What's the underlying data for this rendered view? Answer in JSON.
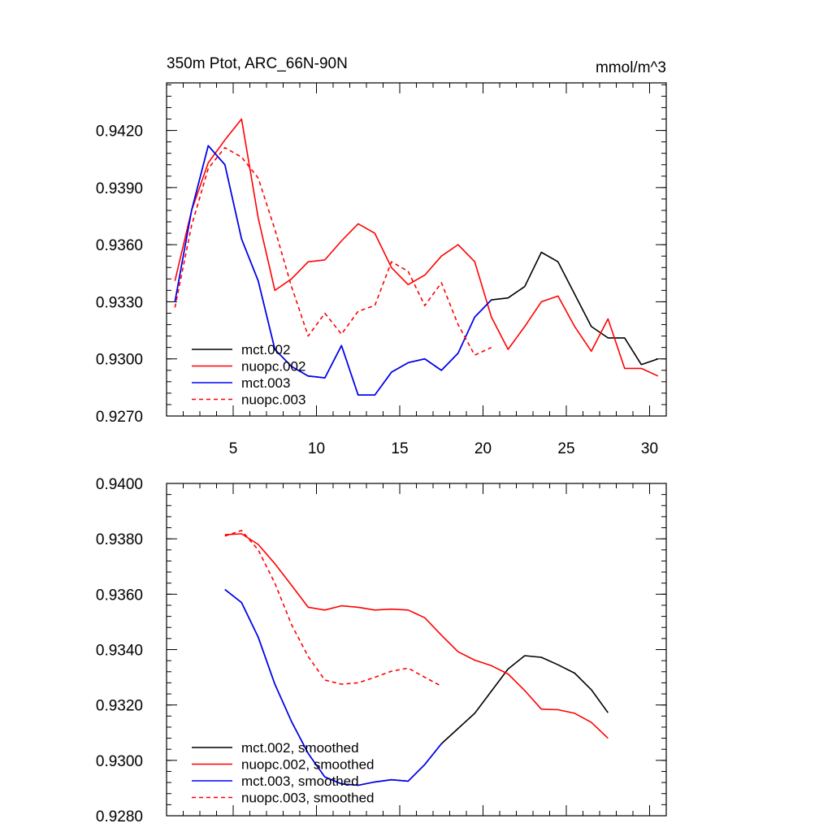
{
  "chart_data": [
    {
      "type": "line",
      "title": "350m Ptot, ARC_66N-90N",
      "units": "mmol/m^3",
      "xlabel": "",
      "ylabel": "",
      "xlim": [
        1,
        31
      ],
      "ylim": [
        0.927,
        0.9445
      ],
      "x_ticks": [
        5,
        10,
        15,
        20,
        25,
        30
      ],
      "x_tick_labels": [
        "5",
        "10",
        "15",
        "20",
        "25",
        "30"
      ],
      "y_ticks": [
        0.927,
        0.93,
        0.933,
        0.936,
        0.939,
        0.942
      ],
      "y_tick_labels": [
        "0.9270",
        "0.9300",
        "0.9330",
        "0.9360",
        "0.9390",
        "0.9420"
      ],
      "legend_position": "bottom-left",
      "series": [
        {
          "name": "mct.002",
          "color": "#000000",
          "dash": "solid",
          "x": [
            1.5,
            2.5,
            3.5,
            4.5,
            5.5,
            6.5,
            7.5,
            8.5,
            9.5,
            10.5,
            11.5,
            12.5,
            13.5,
            14.5,
            15.5,
            16.5,
            17.5,
            18.5,
            19.5,
            20.5,
            21.5,
            22.5,
            23.5,
            24.5,
            25.5,
            26.5,
            27.5,
            28.5,
            29.5,
            30.5
          ],
          "values": [
            0.933,
            0.9378,
            0.9412,
            0.9402,
            0.9363,
            0.9341,
            0.9305,
            0.9296,
            0.9291,
            0.929,
            0.9307,
            0.9281,
            0.9281,
            0.9293,
            0.9298,
            0.93,
            0.9294,
            0.9303,
            0.9322,
            0.9331,
            0.9332,
            0.9338,
            0.9356,
            0.9351,
            0.9334,
            0.9317,
            0.9311,
            0.9311,
            0.9297,
            0.93
          ]
        },
        {
          "name": "nuopc.002",
          "color": "#ff0000",
          "dash": "solid",
          "x": [
            1.5,
            2.5,
            3.5,
            4.5,
            5.5,
            6.5,
            7.5,
            8.5,
            9.5,
            10.5,
            11.5,
            12.5,
            13.5,
            14.5,
            15.5,
            16.5,
            17.5,
            18.5,
            19.5,
            20.5,
            21.5,
            22.5,
            23.5,
            24.5,
            25.5,
            26.5,
            27.5,
            28.5,
            29.5,
            30.5
          ],
          "values": [
            0.9341,
            0.9378,
            0.9403,
            0.9415,
            0.9426,
            0.9374,
            0.9336,
            0.9342,
            0.9351,
            0.9352,
            0.9362,
            0.9371,
            0.9366,
            0.9348,
            0.9339,
            0.9344,
            0.9354,
            0.936,
            0.9351,
            0.9322,
            0.9305,
            0.9317,
            0.933,
            0.9333,
            0.9317,
            0.9304,
            0.9321,
            0.9295,
            0.9295,
            0.9291
          ]
        },
        {
          "name": "mct.003",
          "color": "#0000ff",
          "dash": "solid",
          "x": [
            1.5,
            2.5,
            3.5,
            4.5,
            5.5,
            6.5,
            7.5,
            8.5,
            9.5,
            10.5,
            11.5,
            12.5,
            13.5,
            14.5,
            15.5,
            16.5,
            17.5,
            18.5,
            19.5,
            20.5
          ],
          "values": [
            0.933,
            0.9378,
            0.9412,
            0.9402,
            0.9363,
            0.9341,
            0.9305,
            0.9296,
            0.9291,
            0.929,
            0.9307,
            0.9281,
            0.9281,
            0.9293,
            0.9298,
            0.93,
            0.9294,
            0.9303,
            0.9322,
            0.9331
          ]
        },
        {
          "name": "nuopc.003",
          "color": "#ff0000",
          "dash": "dashed",
          "x": [
            1.5,
            2.5,
            3.5,
            4.5,
            5.5,
            6.5,
            7.5,
            8.5,
            9.5,
            10.5,
            11.5,
            12.5,
            13.5,
            14.5,
            15.5,
            16.5,
            17.5,
            18.5,
            19.5,
            20.5
          ],
          "values": [
            0.9327,
            0.937,
            0.94,
            0.9411,
            0.9406,
            0.9395,
            0.9368,
            0.9338,
            0.9312,
            0.9324,
            0.9313,
            0.9325,
            0.9328,
            0.9351,
            0.9346,
            0.9328,
            0.934,
            0.9318,
            0.9302,
            0.9306
          ]
        }
      ]
    },
    {
      "type": "line",
      "title": "",
      "xlabel": "",
      "ylabel": "",
      "xlim": [
        1,
        31
      ],
      "ylim": [
        0.928,
        0.94
      ],
      "x_ticks": [
        5,
        10,
        15,
        20,
        25,
        30
      ],
      "x_tick_labels": [],
      "y_ticks": [
        0.928,
        0.93,
        0.932,
        0.934,
        0.936,
        0.938,
        0.94
      ],
      "y_tick_labels": [
        "0.9280",
        "0.9300",
        "0.9320",
        "0.9340",
        "0.9360",
        "0.9380",
        "0.9400"
      ],
      "legend_position": "bottom-left",
      "series": [
        {
          "name": "mct.002, smoothed",
          "color": "#000000",
          "dash": "solid",
          "x": [
            4.5,
            5.5,
            6.5,
            7.5,
            8.5,
            9.5,
            10.5,
            11.5,
            12.5,
            13.5,
            14.5,
            15.5,
            16.5,
            17.5,
            18.5,
            19.5,
            20.5,
            21.5,
            22.5,
            23.5,
            24.5,
            25.5,
            26.5,
            27.5
          ],
          "values": [
            0.93617,
            0.9357,
            0.93445,
            0.93275,
            0.9314,
            0.93025,
            0.9294,
            0.92915,
            0.9291,
            0.92922,
            0.9293,
            0.92925,
            0.92985,
            0.9306,
            0.93115,
            0.9317,
            0.9325,
            0.9333,
            0.93378,
            0.93372,
            0.93345,
            0.93315,
            0.93255,
            0.93172
          ]
        },
        {
          "name": "nuopc.002, smoothed",
          "color": "#ff0000",
          "dash": "solid",
          "x": [
            4.5,
            5.5,
            6.5,
            7.5,
            8.5,
            9.5,
            10.5,
            11.5,
            12.5,
            13.5,
            14.5,
            15.5,
            16.5,
            17.5,
            18.5,
            19.5,
            20.5,
            21.5,
            22.5,
            23.5,
            24.5,
            25.5,
            26.5,
            27.5
          ],
          "values": [
            0.93815,
            0.93818,
            0.9378,
            0.9371,
            0.93632,
            0.93553,
            0.93543,
            0.93558,
            0.93553,
            0.93543,
            0.93546,
            0.93543,
            0.93515,
            0.93452,
            0.93392,
            0.93362,
            0.93342,
            0.93312,
            0.93252,
            0.93185,
            0.93183,
            0.9317,
            0.93137,
            0.9308
          ]
        },
        {
          "name": "mct.003, smoothed",
          "color": "#0000ff",
          "dash": "solid",
          "x": [
            4.5,
            5.5,
            6.5,
            7.5,
            8.5,
            9.5,
            10.5,
            11.5,
            12.5,
            13.5,
            14.5,
            15.5,
            16.5,
            17.5
          ],
          "values": [
            0.93617,
            0.9357,
            0.93445,
            0.93275,
            0.9314,
            0.93025,
            0.9294,
            0.92915,
            0.9291,
            0.92922,
            0.9293,
            0.92925,
            0.92985,
            0.9306
          ]
        },
        {
          "name": "nuopc.003, smoothed",
          "color": "#ff0000",
          "dash": "dashed",
          "x": [
            4.5,
            5.5,
            6.5,
            7.5,
            8.5,
            9.5,
            10.5,
            11.5,
            12.5,
            13.5,
            14.5,
            15.5,
            16.5,
            17.5
          ],
          "values": [
            0.9381,
            0.9383,
            0.9376,
            0.9364,
            0.9349,
            0.93375,
            0.9329,
            0.93275,
            0.9328,
            0.933,
            0.93322,
            0.93333,
            0.933,
            0.93268
          ]
        }
      ]
    }
  ]
}
